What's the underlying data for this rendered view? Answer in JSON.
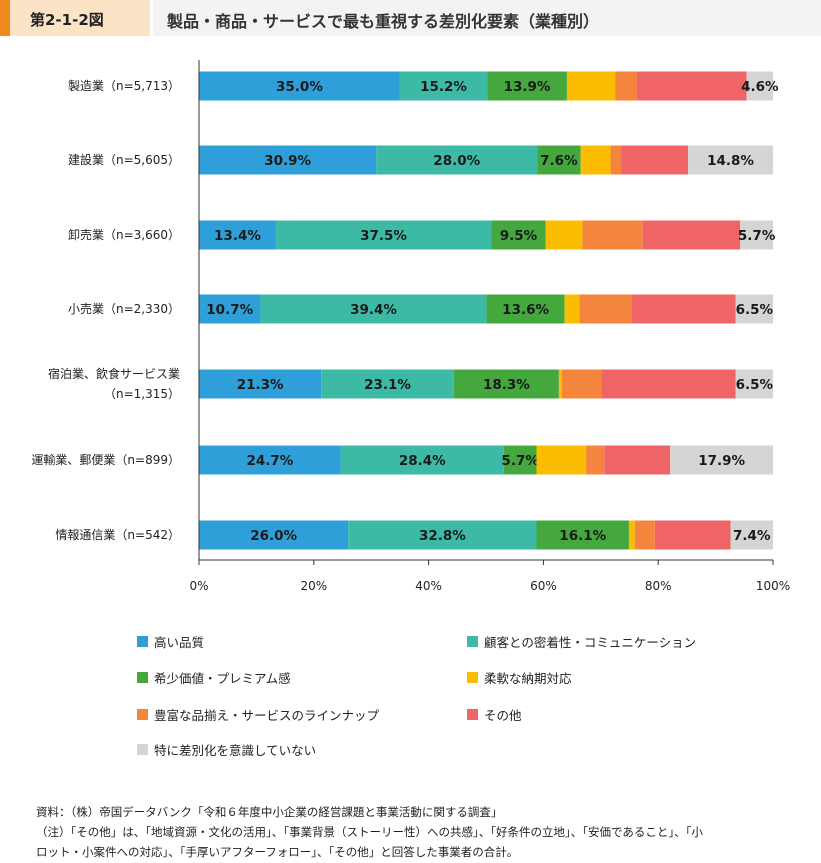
{
  "header": {
    "figure_number": "第2-1-2図",
    "title": "製品・商品・サービスで最も重視する差別化要素（業種別）"
  },
  "chart_data": {
    "type": "bar",
    "orientation": "horizontal",
    "stacked": true,
    "title": "製品・商品・サービスで最も重視する差別化要素（業種別）",
    "xlim": [
      0,
      100
    ],
    "xticks": [
      "0%",
      "20%",
      "40%",
      "60%",
      "80%",
      "100%"
    ],
    "legend_position": "bottom",
    "categories": [
      [
        "製造業（n=5,713）"
      ],
      [
        "建設業（n=5,605）"
      ],
      [
        "卸売業（n=3,660）"
      ],
      [
        "小売業（n=2,330）"
      ],
      [
        "宿泊業、飲食サービス業",
        "（n=1,315）"
      ],
      [
        "運輸業、郵便業（n=899）"
      ],
      [
        "情報通信業（n=542）"
      ]
    ],
    "series": [
      {
        "name": "高い品質",
        "color": "#2e9fd9",
        "values": [
          35.0,
          30.9,
          13.4,
          10.7,
          21.3,
          24.7,
          26.0
        ],
        "labels": [
          "35.0%",
          "30.9%",
          "13.4%",
          "10.7%",
          "21.3%",
          "24.7%",
          "26.0%"
        ]
      },
      {
        "name": "顧客との密着性・コミュニケーション",
        "color": "#3dbaa5",
        "values": [
          15.2,
          28.0,
          37.5,
          39.4,
          23.1,
          28.4,
          32.8
        ],
        "labels": [
          "15.2%",
          "28.0%",
          "37.5%",
          "39.4%",
          "23.1%",
          "28.4%",
          "32.8%"
        ]
      },
      {
        "name": "希少価値・プレミアム感",
        "color": "#44a83e",
        "values": [
          13.9,
          7.6,
          9.5,
          13.6,
          18.3,
          5.7,
          16.1
        ],
        "labels": [
          "13.9%",
          "7.6%",
          "9.5%",
          "13.6%",
          "18.3%",
          "5.7%",
          "16.1%"
        ]
      },
      {
        "name": "柔軟な納期対応",
        "color": "#fcbc00",
        "values": [
          8.4,
          5.2,
          6.4,
          2.6,
          0.5,
          8.6,
          1.0
        ],
        "labels": [
          "",
          "",
          "",
          "",
          "",
          "",
          ""
        ]
      },
      {
        "name": "豊富な品揃え・サービスのラインナップ",
        "color": "#f4853c",
        "values": [
          3.8,
          1.9,
          10.5,
          9.0,
          6.9,
          3.2,
          3.5
        ],
        "labels": [
          "",
          "",
          "",
          "",
          "",
          "",
          ""
        ]
      },
      {
        "name": "その他",
        "color": "#ef6466",
        "values": [
          19.1,
          11.6,
          17.0,
          18.2,
          23.4,
          11.5,
          13.2
        ],
        "labels": [
          "",
          "",
          "",
          "",
          "",
          "",
          ""
        ]
      },
      {
        "name": "特に差別化を意識していない",
        "color": "#d5d5d5",
        "values": [
          4.6,
          14.8,
          5.7,
          6.5,
          6.5,
          17.9,
          7.4
        ],
        "labels": [
          "4.6%",
          "14.8%",
          "5.7%",
          "6.5%",
          "6.5%",
          "17.9%",
          "7.4%"
        ]
      }
    ]
  },
  "notes": [
    "資料：（株）帝国データバンク「令和６年度中小企業の経営課題と事業活動に関する調査」",
    "（注）「その他」は、「地域資源・文化の活用」、「事業背景（ストーリー性）への共感」、「好条件の立地」、「安価であること」、「小",
    "ロット・小案件への対応」、「手厚いアフターフォロー」、「その他」と回答した事業者の合計。"
  ]
}
